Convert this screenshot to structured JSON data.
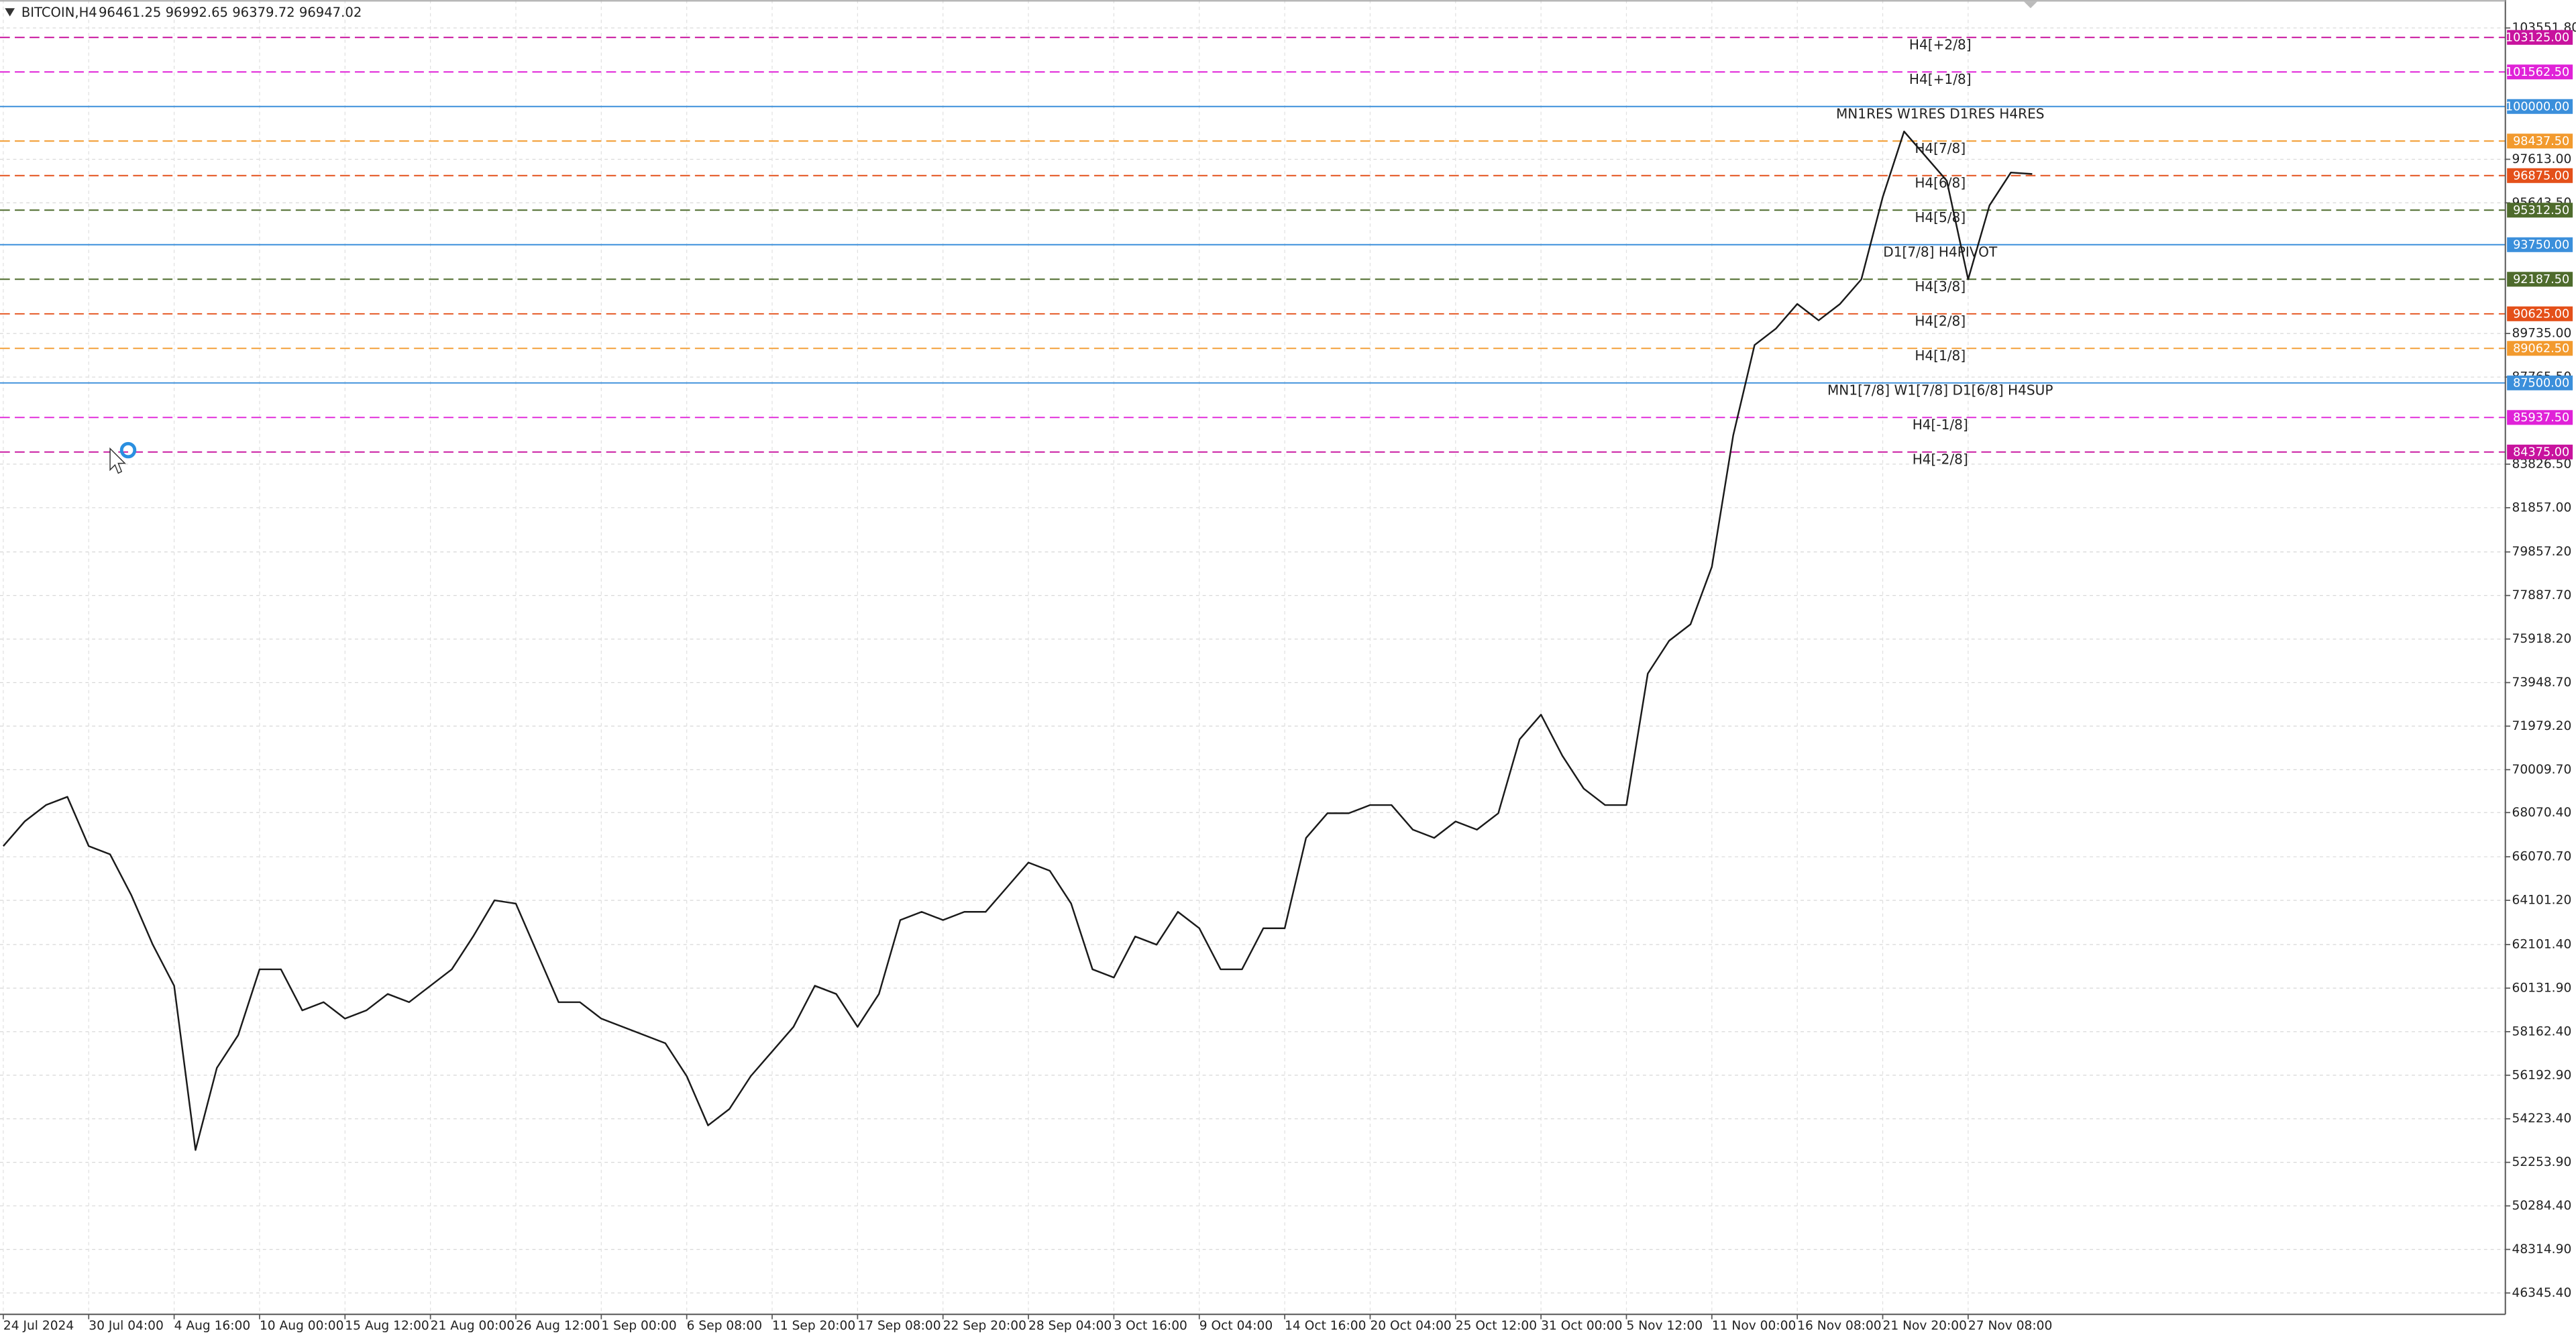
{
  "chart_data": {
    "type": "line",
    "title": "BITCOIN,H4",
    "subtitle": "96461.25 96992.65 96379.72 96947.02",
    "categories": [
      "24 Jul 2024",
      null,
      null,
      null,
      "30 Jul 04:00",
      null,
      null,
      null,
      "4 Aug 16:00",
      null,
      null,
      null,
      "10 Aug 00:00",
      null,
      null,
      null,
      "15 Aug 12:00",
      null,
      null,
      null,
      "21 Aug 00:00",
      null,
      null,
      null,
      "26 Aug 12:00",
      null,
      null,
      null,
      "1 Sep 00:00",
      null,
      null,
      null,
      "6 Sep 08:00",
      null,
      null,
      null,
      "11 Sep 20:00",
      null,
      null,
      null,
      "17 Sep 08:00",
      null,
      null,
      null,
      "22 Sep 20:00",
      null,
      null,
      null,
      "28 Sep 04:00",
      null,
      null,
      null,
      "3 Oct 16:00",
      null,
      null,
      null,
      "9 Oct 04:00",
      null,
      null,
      null,
      "14 Oct 16:00",
      null,
      null,
      null,
      "20 Oct 04:00",
      null,
      null,
      null,
      "25 Oct 12:00",
      null,
      null,
      null,
      "31 Oct 00:00",
      null,
      null,
      null,
      "5 Nov 12:00",
      null,
      null,
      null,
      "11 Nov 00:00",
      null,
      null,
      null,
      "16 Nov 08:00",
      null,
      null,
      null,
      "21 Nov 20:00",
      null,
      null,
      null,
      "27 Nov 08:00",
      null,
      null,
      null
    ],
    "series": [
      {
        "name": "BITCOIN",
        "color": "#1a1a1a",
        "values": [
          66554,
          67668,
          68411,
          68782,
          66554,
          66182,
          64325,
          62096,
          60239,
          52809,
          56524,
          58010,
          60982,
          60982,
          59124,
          59496,
          58753,
          59124,
          59867,
          59496,
          60239,
          60982,
          62467,
          64102,
          63953,
          61724,
          59496,
          59496,
          58753,
          58381,
          58010,
          57638,
          56152,
          53924,
          54667,
          56152,
          57267,
          58381,
          60239,
          59867,
          58381,
          59867,
          63210,
          63582,
          63210,
          63582,
          63582,
          64696,
          65811,
          65439,
          63953,
          60982,
          60610,
          62467,
          62096,
          63582,
          62839,
          60982,
          60982,
          62839,
          62839,
          66925,
          68039,
          68039,
          68411,
          68411,
          67297,
          66925,
          67668,
          67297,
          68039,
          71383,
          72497,
          70640,
          69154,
          68411,
          68411,
          74354,
          75840,
          76583,
          79184,
          85127,
          89213,
          89956,
          91071,
          90328,
          91071,
          92185,
          95900,
          98871,
          97757,
          96643,
          92185,
          95528,
          97014,
          96947.02
        ]
      }
    ],
    "ylim": [
      45380,
      104815
    ],
    "yticks": [
      {
        "value": 103551.8,
        "label": "103551.80"
      },
      {
        "value": 97613,
        "label": "97613.00"
      },
      {
        "value": 95643.5,
        "label": "95643.50"
      },
      {
        "value": 89735,
        "label": "89735.00"
      },
      {
        "value": 87765.5,
        "label": "87765.50"
      },
      {
        "value": 83826.5,
        "label": "83826.50"
      },
      {
        "value": 81857,
        "label": "81857.00"
      },
      {
        "value": 79857.2,
        "label": "79857.20"
      },
      {
        "value": 77887.7,
        "label": "77887.70"
      },
      {
        "value": 75918.2,
        "label": "75918.20"
      },
      {
        "value": 73948.7,
        "label": "73948.70"
      },
      {
        "value": 71979.2,
        "label": "71979.20"
      },
      {
        "value": 70009.7,
        "label": "70009.70"
      },
      {
        "value": 68070.4,
        "label": "68070.40"
      },
      {
        "value": 66070.7,
        "label": "66070.70"
      },
      {
        "value": 64101.2,
        "label": "64101.20"
      },
      {
        "value": 62101.4,
        "label": "62101.40"
      },
      {
        "value": 60131.9,
        "label": "60131.90"
      },
      {
        "value": 58162.4,
        "label": "58162.40"
      },
      {
        "value": 56192.9,
        "label": "56192.90"
      },
      {
        "value": 54223.4,
        "label": "54223.40"
      },
      {
        "value": 52253.9,
        "label": "52253.90"
      },
      {
        "value": 50284.4,
        "label": "50284.40"
      },
      {
        "value": 48314.9,
        "label": "48314.90"
      },
      {
        "value": 46345.4,
        "label": "46345.40"
      }
    ],
    "grid": true,
    "levels": [
      {
        "value": 103125,
        "label": "103125.00",
        "text": "H4[+2/8]",
        "color": "#c8139e",
        "style": "dashed"
      },
      {
        "value": 101562.5,
        "label": "101562.50",
        "text": "H4[+1/8]",
        "color": "#e022d8",
        "style": "dashed"
      },
      {
        "value": 100000,
        "label": "100000.00",
        "text": "MN1RES W1RES D1RES H4RES",
        "color": "#3b8fdb",
        "style": "solid"
      },
      {
        "value": 98437.5,
        "label": "98437.50",
        "text": "H4[7/8]",
        "color": "#f29a2e",
        "style": "dashed"
      },
      {
        "value": 96875,
        "label": "96875.00",
        "text": "H4[6/8]",
        "color": "#e4501a",
        "style": "dashed"
      },
      {
        "value": 95312.5,
        "label": "95312.50",
        "text": "H4[5/8]",
        "color": "#4e6b2c",
        "style": "dashed"
      },
      {
        "value": 93750,
        "label": "93750.00",
        "text": "D1[7/8] H4PIVOT",
        "color": "#3b8fdb",
        "style": "solid"
      },
      {
        "value": 92187.5,
        "label": "92187.50",
        "text": "H4[3/8]",
        "color": "#4e6b2c",
        "style": "dashed"
      },
      {
        "value": 90625,
        "label": "90625.00",
        "text": "H4[2/8]",
        "color": "#e4501a",
        "style": "dashed"
      },
      {
        "value": 89062.5,
        "label": "89062.50",
        "text": "H4[1/8]",
        "color": "#f29a2e",
        "style": "dashed"
      },
      {
        "value": 87500,
        "label": "87500.00",
        "text": "MN1[7/8] W1[7/8] D1[6/8] H4SUP",
        "color": "#3b8fdb",
        "style": "solid"
      },
      {
        "value": 85937.5,
        "label": "85937.50",
        "text": "H4[-1/8]",
        "color": "#e022d8",
        "style": "dashed"
      },
      {
        "value": 84375,
        "label": "84375.00",
        "text": "H4[-2/8]",
        "color": "#c8139e",
        "style": "dashed"
      }
    ]
  }
}
